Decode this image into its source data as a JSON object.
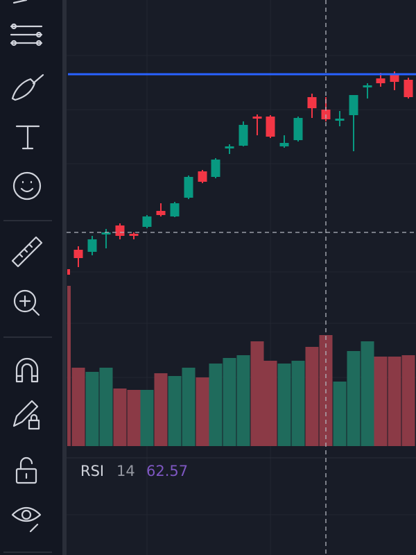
{
  "indicator": {
    "name": "RSI",
    "length": "14",
    "value": "62.57"
  }
}
